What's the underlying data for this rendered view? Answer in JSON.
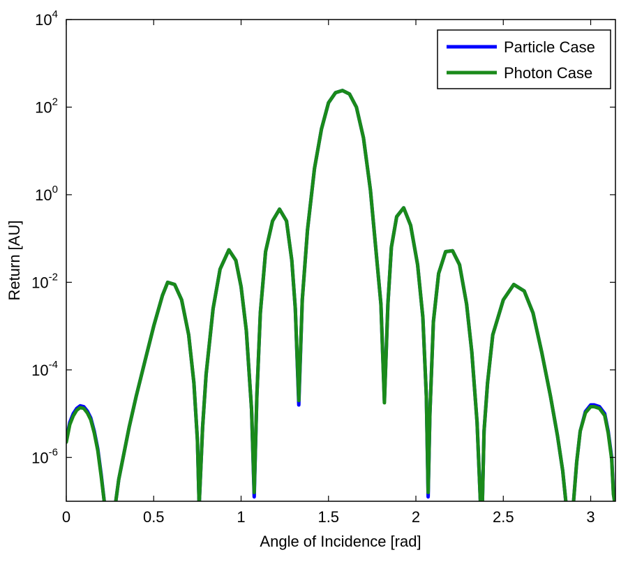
{
  "chart_data": {
    "type": "line",
    "title": "",
    "xlabel": "Angle of Incidence [rad]",
    "ylabel": "Return [AU]",
    "xlim": [
      0,
      3.1416
    ],
    "ylim_exponent": [
      -7,
      4
    ],
    "y_scale": "log",
    "grid": false,
    "legend_position": "top-right",
    "x_ticks": [
      "0",
      "0.5",
      "1",
      "1.5",
      "2",
      "2.5",
      "3"
    ],
    "x_tick_values": [
      0,
      0.5,
      1,
      1.5,
      2,
      2.5,
      3
    ],
    "y_ticks": [
      {
        "base": "10",
        "exp": "-6",
        "exponent": -6
      },
      {
        "base": "10",
        "exp": "-4",
        "exponent": -4
      },
      {
        "base": "10",
        "exp": "-2",
        "exponent": -2
      },
      {
        "base": "10",
        "exp": "0",
        "exponent": 0
      },
      {
        "base": "10",
        "exp": "2",
        "exponent": 2
      },
      {
        "base": "10",
        "exp": "4",
        "exponent": 4
      }
    ],
    "series": [
      {
        "name": "Particle Case",
        "color": "#0000ff",
        "x": [
          0,
          0.02,
          0.04,
          0.06,
          0.08,
          0.1,
          0.12,
          0.14,
          0.16,
          0.18,
          0.2,
          0.22,
          0.28,
          0.3,
          0.33,
          0.36,
          0.4,
          0.45,
          0.5,
          0.55,
          0.58,
          0.62,
          0.66,
          0.7,
          0.73,
          0.75,
          0.76,
          0.78,
          0.8,
          0.84,
          0.88,
          0.93,
          0.97,
          1.0,
          1.03,
          1.06,
          1.075,
          1.09,
          1.11,
          1.14,
          1.18,
          1.22,
          1.26,
          1.29,
          1.31,
          1.33,
          1.35,
          1.38,
          1.42,
          1.46,
          1.5,
          1.54,
          1.58,
          1.62,
          1.66,
          1.7,
          1.74,
          1.77,
          1.8,
          1.82,
          1.84,
          1.86,
          1.89,
          1.93,
          1.97,
          2.01,
          2.04,
          2.06,
          2.07,
          2.08,
          2.1,
          2.13,
          2.17,
          2.21,
          2.25,
          2.29,
          2.32,
          2.35,
          2.37,
          2.38,
          2.39,
          2.41,
          2.44,
          2.5,
          2.56,
          2.62,
          2.67,
          2.72,
          2.77,
          2.81,
          2.84,
          2.86,
          2.9,
          2.92,
          2.94,
          2.97,
          3.0,
          3.02,
          3.05,
          3.08,
          3.1,
          3.12,
          3.13,
          3.14
        ],
        "y_exp": [
          -5.6,
          -5.2,
          -5.0,
          -4.88,
          -4.82,
          -4.84,
          -4.94,
          -5.1,
          -5.4,
          -5.8,
          -6.4,
          -7.1,
          -7.1,
          -6.5,
          -5.9,
          -5.3,
          -4.6,
          -3.8,
          -3.0,
          -2.3,
          -2.0,
          -2.05,
          -2.4,
          -3.2,
          -4.3,
          -5.6,
          -7.1,
          -5.3,
          -4.1,
          -2.6,
          -1.7,
          -1.26,
          -1.5,
          -2.1,
          -3.1,
          -4.9,
          -6.9,
          -4.6,
          -2.7,
          -1.3,
          -0.6,
          -0.33,
          -0.6,
          -1.5,
          -2.6,
          -4.8,
          -2.4,
          -0.8,
          0.6,
          1.5,
          2.1,
          2.33,
          2.38,
          2.3,
          2.0,
          1.3,
          0.1,
          -1.2,
          -2.5,
          -4.7,
          -2.5,
          -1.2,
          -0.5,
          -0.3,
          -0.7,
          -1.6,
          -2.8,
          -4.6,
          -6.9,
          -5.0,
          -2.9,
          -1.8,
          -1.3,
          -1.28,
          -1.6,
          -2.5,
          -3.6,
          -5.2,
          -7.1,
          -7.1,
          -5.4,
          -4.3,
          -3.2,
          -2.4,
          -2.05,
          -2.2,
          -2.7,
          -3.6,
          -4.6,
          -5.5,
          -6.3,
          -7.1,
          -7.1,
          -6.1,
          -5.4,
          -4.95,
          -4.8,
          -4.8,
          -4.84,
          -5.0,
          -5.4,
          -6.0,
          -6.8,
          -7.1
        ]
      },
      {
        "name": "Photon Case",
        "color": "#1a8a1a",
        "x": [
          0,
          0.02,
          0.04,
          0.06,
          0.08,
          0.1,
          0.12,
          0.14,
          0.16,
          0.18,
          0.2,
          0.22,
          0.28,
          0.3,
          0.33,
          0.36,
          0.4,
          0.45,
          0.5,
          0.55,
          0.58,
          0.62,
          0.66,
          0.7,
          0.73,
          0.75,
          0.76,
          0.78,
          0.8,
          0.84,
          0.88,
          0.93,
          0.97,
          1.0,
          1.03,
          1.06,
          1.075,
          1.09,
          1.11,
          1.14,
          1.18,
          1.22,
          1.26,
          1.29,
          1.31,
          1.33,
          1.35,
          1.38,
          1.42,
          1.46,
          1.5,
          1.54,
          1.58,
          1.62,
          1.66,
          1.7,
          1.74,
          1.77,
          1.8,
          1.82,
          1.84,
          1.86,
          1.89,
          1.93,
          1.97,
          2.01,
          2.04,
          2.06,
          2.07,
          2.08,
          2.1,
          2.13,
          2.17,
          2.21,
          2.25,
          2.29,
          2.32,
          2.35,
          2.37,
          2.38,
          2.39,
          2.41,
          2.44,
          2.5,
          2.56,
          2.62,
          2.67,
          2.72,
          2.77,
          2.81,
          2.84,
          2.86,
          2.9,
          2.92,
          2.94,
          2.97,
          3.0,
          3.02,
          3.05,
          3.08,
          3.1,
          3.12,
          3.13,
          3.14
        ],
        "y_exp": [
          -5.65,
          -5.25,
          -5.05,
          -4.92,
          -4.86,
          -4.88,
          -4.98,
          -5.14,
          -5.44,
          -5.84,
          -6.44,
          -7.1,
          -7.1,
          -6.5,
          -5.9,
          -5.3,
          -4.6,
          -3.8,
          -3.0,
          -2.3,
          -2.0,
          -2.05,
          -2.4,
          -3.2,
          -4.3,
          -5.6,
          -7.1,
          -5.3,
          -4.1,
          -2.6,
          -1.7,
          -1.26,
          -1.5,
          -2.1,
          -3.1,
          -4.9,
          -6.8,
          -4.6,
          -2.7,
          -1.3,
          -0.6,
          -0.33,
          -0.6,
          -1.5,
          -2.6,
          -4.7,
          -2.4,
          -0.8,
          0.6,
          1.5,
          2.1,
          2.33,
          2.38,
          2.3,
          2.0,
          1.3,
          0.1,
          -1.2,
          -2.5,
          -4.75,
          -2.5,
          -1.2,
          -0.5,
          -0.3,
          -0.7,
          -1.6,
          -2.8,
          -4.6,
          -6.8,
          -5.0,
          -2.9,
          -1.8,
          -1.3,
          -1.28,
          -1.6,
          -2.5,
          -3.6,
          -5.2,
          -7.1,
          -7.1,
          -5.4,
          -4.3,
          -3.2,
          -2.4,
          -2.05,
          -2.2,
          -2.7,
          -3.6,
          -4.6,
          -5.5,
          -6.3,
          -7.1,
          -7.1,
          -6.1,
          -5.4,
          -4.98,
          -4.84,
          -4.84,
          -4.88,
          -5.04,
          -5.44,
          -6.04,
          -6.84,
          -7.1
        ]
      }
    ]
  }
}
